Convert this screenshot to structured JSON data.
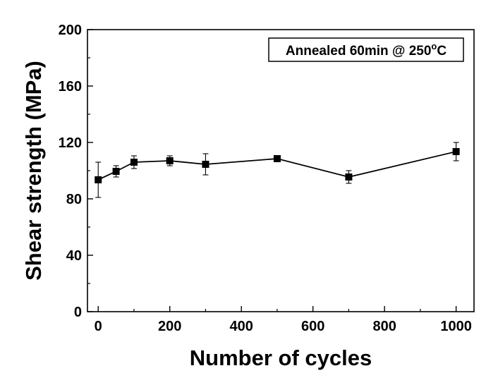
{
  "chart_data": {
    "type": "line",
    "title": "",
    "xlabel": "Number of cycles",
    "ylabel": "Shear strength (MPa)",
    "xlim": [
      -30,
      1050
    ],
    "ylim": [
      0,
      200
    ],
    "x_ticks": [
      0,
      200,
      400,
      600,
      800,
      1000
    ],
    "y_ticks": [
      0,
      40,
      80,
      120,
      160,
      200
    ],
    "grid": false,
    "legend_placement": "top-right",
    "annotation": {
      "text_main": "Annealed 60min @ 250",
      "text_super": "o",
      "text_end": "C"
    },
    "series": [
      {
        "marker": "square",
        "color": "#000000",
        "x": [
          0,
          50,
          100,
          200,
          300,
          500,
          700,
          1000
        ],
        "y": [
          93.5,
          99.5,
          106,
          107,
          104.5,
          108.5,
          95.5,
          113.5
        ],
        "error": [
          12.5,
          4,
          4.5,
          3.5,
          7.5,
          0,
          4.5,
          6.5
        ]
      }
    ]
  }
}
